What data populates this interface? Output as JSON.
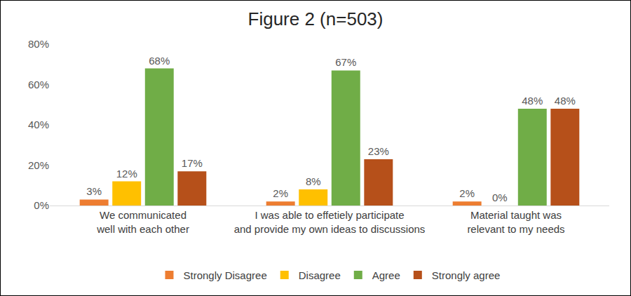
{
  "chart_data": {
    "type": "bar",
    "title": "Figure 2 (n=503)",
    "categories": [
      "We communicated well with each other",
      "I was able to effetiely participate and provide my own ideas to discussions",
      "Material taught was relevant to my needs"
    ],
    "series": [
      {
        "name": "Strongly Disagree",
        "color": "#ED7D31",
        "values": [
          3,
          2,
          2
        ],
        "value_labels": [
          "3%",
          "2%",
          "2%"
        ]
      },
      {
        "name": "Disagree",
        "color": "#FFC000",
        "values": [
          12,
          8,
          0
        ],
        "value_labels": [
          "12%",
          "8%",
          "0%"
        ]
      },
      {
        "name": "Agree",
        "color": "#70AD47",
        "values": [
          68,
          67,
          48
        ],
        "value_labels": [
          "68%",
          "67%",
          "48%"
        ]
      },
      {
        "name": "Strongly agree",
        "color": "#B6501A",
        "values": [
          17,
          23,
          48
        ],
        "value_labels": [
          "17%",
          "23%",
          "48%"
        ]
      }
    ],
    "ylim": [
      0,
      80
    ],
    "yticks": [
      {
        "value": 0,
        "label": "0%"
      },
      {
        "value": 20,
        "label": "20%"
      },
      {
        "value": 40,
        "label": "40%"
      },
      {
        "value": 60,
        "label": "60%"
      },
      {
        "value": 80,
        "label": "80%"
      }
    ],
    "grid": false,
    "legend": "bottom",
    "data_labels": true
  }
}
